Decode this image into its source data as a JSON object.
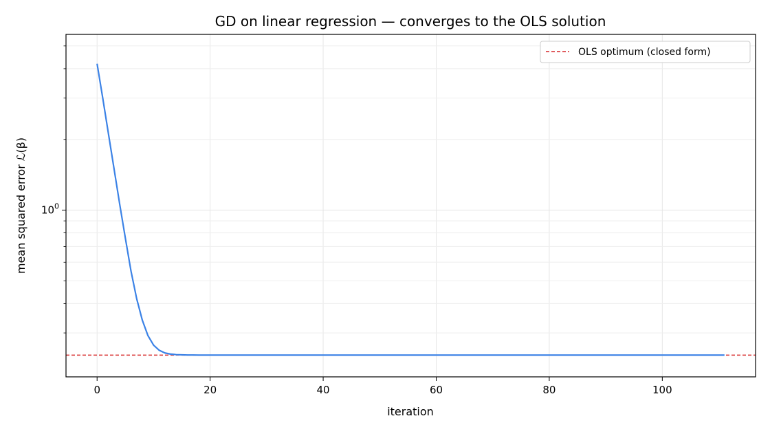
{
  "chart_data": {
    "type": "line",
    "title": "GD on linear regression — converges to the OLS solution",
    "xlabel": "iteration",
    "ylabel": "mean squared error  ℒ(β)",
    "xscale": "linear",
    "yscale": "log",
    "xlim": [
      -5.5,
      116.5
    ],
    "ylim": [
      0.195,
      5.6
    ],
    "x_ticks": [
      0,
      20,
      40,
      60,
      80,
      100
    ],
    "x_tick_labels": [
      "0",
      "20",
      "40",
      "60",
      "80",
      "100"
    ],
    "y_major_ticks": [
      1
    ],
    "y_minor_ticks": [
      0.3,
      0.4,
      0.5,
      0.6,
      0.7,
      0.8,
      0.9,
      2,
      3,
      4,
      5
    ],
    "grid": true,
    "legend_position": "top-right",
    "series": [
      {
        "x_start": 0,
        "x_end": 111,
        "values": [
          4.2,
          3.0,
          2.12,
          1.5,
          1.06,
          0.76,
          0.55,
          0.42,
          0.34,
          0.292,
          0.266,
          0.253,
          0.2465,
          0.2438,
          0.2425,
          0.2419,
          0.2416,
          0.2415,
          0.2414,
          0.2414,
          0.2413
        ],
        "tail_value": 0.2413,
        "color": "#3b82e6"
      }
    ],
    "hlines": [
      {
        "name": "OLS optimum (closed form)",
        "y": 0.2413,
        "color": "#d62728",
        "style": "dashed"
      }
    ]
  }
}
